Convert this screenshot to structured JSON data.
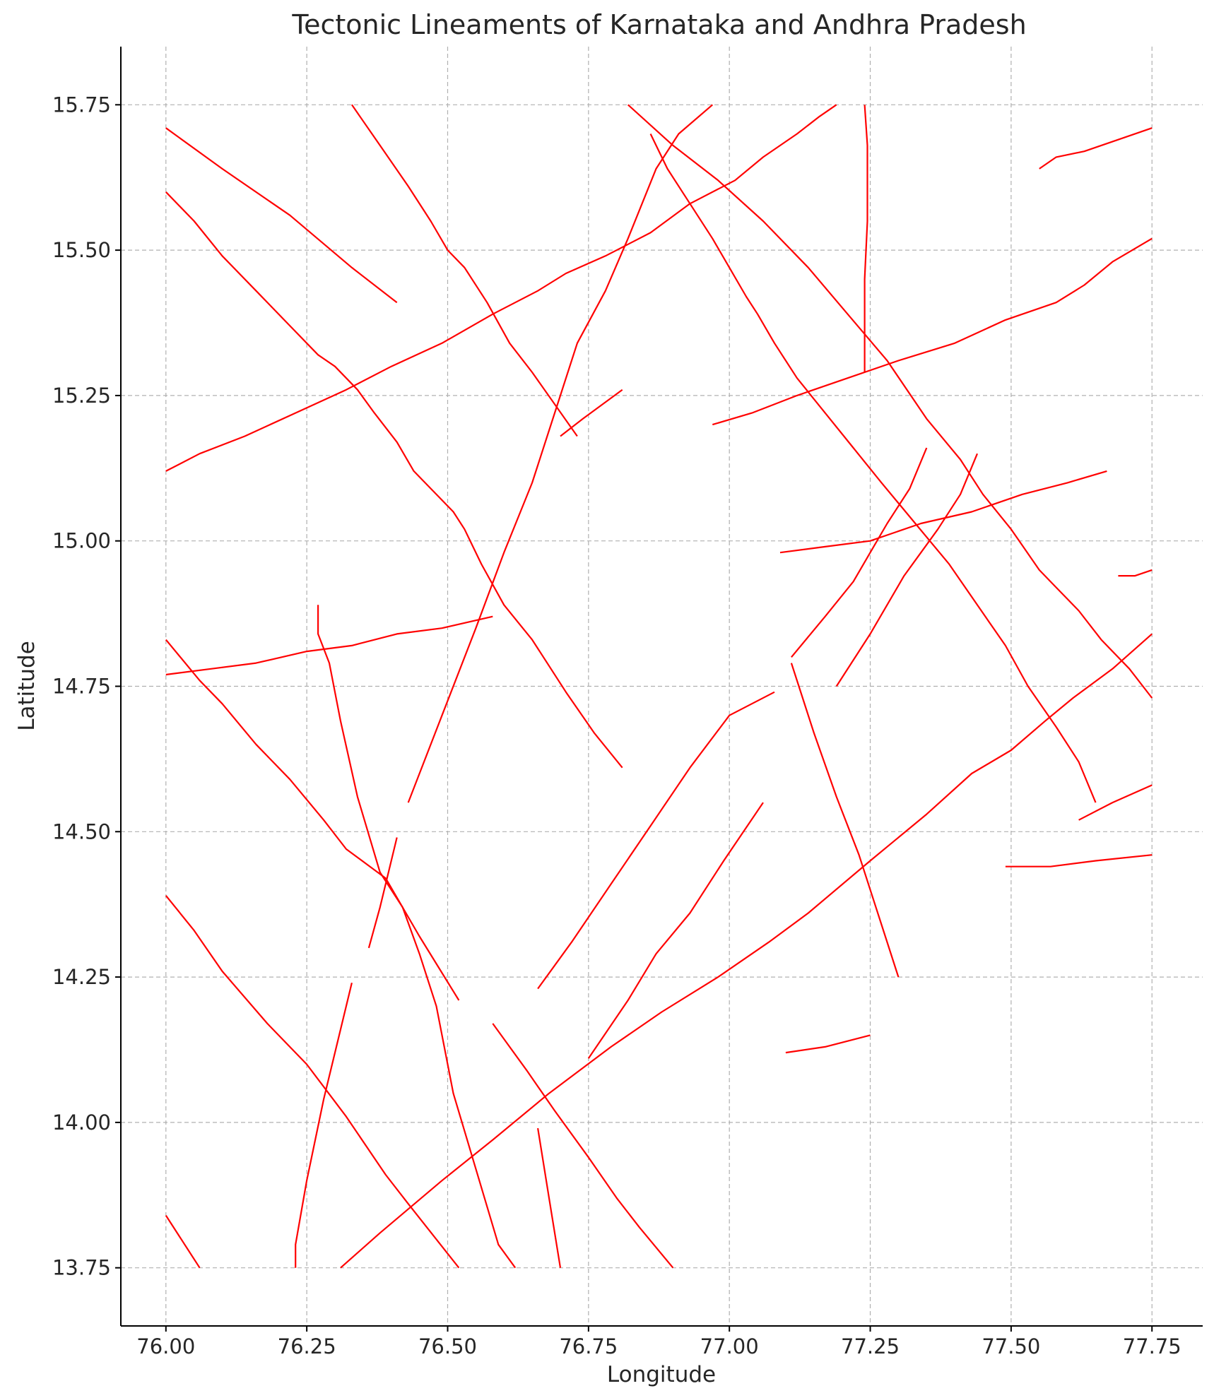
{
  "chart_data": {
    "type": "line",
    "title": "Tectonic Lineaments of Karnataka and Andhra Pradesh",
    "xlabel": "Longitude",
    "ylabel": "Latitude",
    "xlim": [
      75.92,
      77.84
    ],
    "ylim": [
      13.65,
      15.85
    ],
    "xticks": [
      "76.00",
      "76.25",
      "76.50",
      "76.75",
      "77.00",
      "77.25",
      "77.50",
      "77.75"
    ],
    "yticks": [
      "13.75",
      "14.00",
      "14.25",
      "14.50",
      "14.75",
      "15.00",
      "15.25",
      "15.50",
      "15.75"
    ],
    "grid": true,
    "line_color": "#ff0000",
    "series": [
      {
        "points": [
          [
            76.0,
            15.71
          ],
          [
            76.1,
            15.64
          ],
          [
            76.22,
            15.56
          ],
          [
            76.33,
            15.47
          ],
          [
            76.41,
            15.41
          ]
        ]
      },
      {
        "points": [
          [
            76.0,
            15.6
          ],
          [
            76.05,
            15.55
          ],
          [
            76.1,
            15.49
          ],
          [
            76.16,
            15.43
          ],
          [
            76.22,
            15.37
          ],
          [
            76.27,
            15.32
          ],
          [
            76.3,
            15.3
          ],
          [
            76.34,
            15.26
          ],
          [
            76.37,
            15.22
          ],
          [
            76.41,
            15.17
          ],
          [
            76.44,
            15.12
          ],
          [
            76.47,
            15.09
          ],
          [
            76.51,
            15.05
          ],
          [
            76.53,
            15.02
          ],
          [
            76.56,
            14.96
          ],
          [
            76.6,
            14.89
          ],
          [
            76.65,
            14.83
          ],
          [
            76.71,
            14.74
          ],
          [
            76.76,
            14.67
          ],
          [
            76.81,
            14.61
          ]
        ]
      },
      {
        "points": [
          [
            76.33,
            15.75
          ],
          [
            76.38,
            15.68
          ],
          [
            76.43,
            15.61
          ],
          [
            76.47,
            15.55
          ],
          [
            76.5,
            15.5
          ],
          [
            76.53,
            15.47
          ],
          [
            76.57,
            15.41
          ],
          [
            76.61,
            15.34
          ],
          [
            76.65,
            15.29
          ],
          [
            76.73,
            15.18
          ]
        ]
      },
      {
        "points": [
          [
            76.7,
            15.18
          ],
          [
            76.74,
            15.21
          ],
          [
            76.81,
            15.26
          ]
        ]
      },
      {
        "points": [
          [
            76.0,
            15.12
          ],
          [
            76.06,
            15.15
          ],
          [
            76.14,
            15.18
          ],
          [
            76.23,
            15.22
          ],
          [
            76.32,
            15.26
          ],
          [
            76.4,
            15.3
          ],
          [
            76.49,
            15.34
          ],
          [
            76.58,
            15.39
          ],
          [
            76.66,
            15.43
          ],
          [
            76.71,
            15.46
          ],
          [
            76.78,
            15.49
          ],
          [
            76.86,
            15.53
          ],
          [
            76.93,
            15.58
          ],
          [
            77.01,
            15.62
          ],
          [
            77.06,
            15.66
          ],
          [
            77.12,
            15.7
          ],
          [
            77.16,
            15.73
          ],
          [
            77.19,
            15.75
          ]
        ]
      },
      {
        "points": [
          [
            76.43,
            14.55
          ],
          [
            76.49,
            14.7
          ],
          [
            76.55,
            14.85
          ],
          [
            76.6,
            14.98
          ],
          [
            76.65,
            15.1
          ],
          [
            76.69,
            15.22
          ],
          [
            76.73,
            15.34
          ],
          [
            76.78,
            15.43
          ],
          [
            76.82,
            15.52
          ],
          [
            76.87,
            15.64
          ],
          [
            76.91,
            15.7
          ],
          [
            76.97,
            15.75
          ]
        ]
      },
      {
        "points": [
          [
            76.82,
            15.75
          ],
          [
            76.9,
            15.68
          ],
          [
            76.98,
            15.62
          ],
          [
            77.06,
            15.55
          ],
          [
            77.14,
            15.47
          ],
          [
            77.21,
            15.39
          ],
          [
            77.28,
            15.31
          ],
          [
            77.35,
            15.21
          ],
          [
            77.41,
            15.14
          ],
          [
            77.45,
            15.08
          ],
          [
            77.5,
            15.02
          ],
          [
            77.55,
            14.95
          ],
          [
            77.58,
            14.92
          ],
          [
            77.62,
            14.88
          ],
          [
            77.66,
            14.83
          ],
          [
            77.71,
            14.78
          ],
          [
            77.75,
            14.73
          ]
        ]
      },
      {
        "points": [
          [
            76.86,
            15.7
          ],
          [
            76.89,
            15.64
          ],
          [
            76.93,
            15.58
          ],
          [
            76.97,
            15.52
          ],
          [
            77.0,
            15.47
          ],
          [
            77.03,
            15.42
          ],
          [
            77.05,
            15.39
          ],
          [
            77.08,
            15.34
          ],
          [
            77.12,
            15.28
          ],
          [
            77.17,
            15.22
          ],
          [
            77.22,
            15.16
          ],
          [
            77.27,
            15.1
          ],
          [
            77.33,
            15.03
          ],
          [
            77.39,
            14.96
          ],
          [
            77.44,
            14.89
          ],
          [
            77.49,
            14.82
          ],
          [
            77.53,
            14.75
          ],
          [
            77.58,
            14.68
          ],
          [
            77.62,
            14.62
          ],
          [
            77.65,
            14.55
          ]
        ]
      },
      {
        "points": [
          [
            77.24,
            15.75
          ],
          [
            77.245,
            15.68
          ],
          [
            77.245,
            15.55
          ],
          [
            77.24,
            15.45
          ],
          [
            77.24,
            15.37
          ],
          [
            77.24,
            15.29
          ]
        ]
      },
      {
        "points": [
          [
            76.97,
            15.2
          ],
          [
            77.04,
            15.22
          ],
          [
            77.12,
            15.25
          ],
          [
            77.21,
            15.28
          ],
          [
            77.3,
            15.31
          ],
          [
            77.4,
            15.34
          ],
          [
            77.49,
            15.38
          ],
          [
            77.58,
            15.41
          ],
          [
            77.63,
            15.44
          ],
          [
            77.68,
            15.48
          ],
          [
            77.75,
            15.52
          ]
        ]
      },
      {
        "points": [
          [
            77.55,
            15.64
          ],
          [
            77.58,
            15.66
          ],
          [
            77.63,
            15.67
          ],
          [
            77.69,
            15.69
          ],
          [
            77.75,
            15.71
          ]
        ]
      },
      {
        "points": [
          [
            77.09,
            14.98
          ],
          [
            77.17,
            14.99
          ],
          [
            77.25,
            15.0
          ],
          [
            77.34,
            15.03
          ],
          [
            77.43,
            15.05
          ],
          [
            77.52,
            15.08
          ],
          [
            77.6,
            15.1
          ],
          [
            77.67,
            15.12
          ]
        ]
      },
      {
        "points": [
          [
            77.11,
            14.8
          ],
          [
            77.17,
            14.87
          ],
          [
            77.22,
            14.93
          ],
          [
            77.25,
            14.98
          ],
          [
            77.28,
            15.03
          ],
          [
            77.32,
            15.09
          ],
          [
            77.35,
            15.16
          ]
        ]
      },
      {
        "points": [
          [
            77.19,
            14.75
          ],
          [
            77.25,
            14.84
          ],
          [
            77.31,
            14.94
          ],
          [
            77.34,
            14.98
          ],
          [
            77.37,
            15.02
          ],
          [
            77.41,
            15.08
          ],
          [
            77.44,
            15.15
          ]
        ]
      },
      {
        "points": [
          [
            77.69,
            14.94
          ],
          [
            77.72,
            14.94
          ],
          [
            77.75,
            14.95
          ]
        ]
      },
      {
        "points": [
          [
            77.11,
            14.79
          ],
          [
            77.15,
            14.67
          ],
          [
            77.19,
            14.56
          ],
          [
            77.23,
            14.46
          ],
          [
            77.27,
            14.34
          ],
          [
            77.3,
            14.25
          ]
        ]
      },
      {
        "points": [
          [
            76.0,
            14.77
          ],
          [
            76.08,
            14.78
          ],
          [
            76.16,
            14.79
          ],
          [
            76.25,
            14.81
          ],
          [
            76.33,
            14.82
          ],
          [
            76.41,
            14.84
          ],
          [
            76.49,
            14.85
          ],
          [
            76.58,
            14.87
          ]
        ]
      },
      {
        "points": [
          [
            76.0,
            14.83
          ],
          [
            76.06,
            14.76
          ],
          [
            76.1,
            14.72
          ],
          [
            76.16,
            14.65
          ],
          [
            76.22,
            14.59
          ],
          [
            76.28,
            14.52
          ],
          [
            76.32,
            14.47
          ],
          [
            76.39,
            14.42
          ],
          [
            76.45,
            14.32
          ],
          [
            76.52,
            14.21
          ]
        ]
      },
      {
        "points": [
          [
            76.27,
            14.89
          ],
          [
            76.27,
            14.84
          ],
          [
            76.29,
            14.79
          ],
          [
            76.31,
            14.69
          ],
          [
            76.34,
            14.56
          ],
          [
            76.38,
            14.43
          ],
          [
            76.42,
            14.37
          ],
          [
            76.45,
            14.29
          ],
          [
            76.48,
            14.2
          ],
          [
            76.51,
            14.05
          ],
          [
            76.55,
            13.92
          ],
          [
            76.59,
            13.79
          ],
          [
            76.62,
            13.75
          ]
        ]
      },
      {
        "points": [
          [
            76.36,
            14.3
          ],
          [
            76.38,
            14.37
          ],
          [
            76.41,
            14.49
          ]
        ]
      },
      {
        "points": [
          [
            76.0,
            14.39
          ],
          [
            76.05,
            14.33
          ],
          [
            76.1,
            14.26
          ],
          [
            76.18,
            14.17
          ],
          [
            76.21,
            14.14
          ],
          [
            76.25,
            14.1
          ],
          [
            76.32,
            14.01
          ],
          [
            76.39,
            13.91
          ],
          [
            76.43,
            13.86
          ],
          [
            76.52,
            13.75
          ]
        ]
      },
      {
        "points": [
          [
            76.23,
            13.75
          ],
          [
            76.23,
            13.79
          ],
          [
            76.25,
            13.9
          ],
          [
            76.28,
            14.04
          ],
          [
            76.33,
            14.24
          ]
        ]
      },
      {
        "points": [
          [
            76.0,
            13.84
          ],
          [
            76.06,
            13.75
          ]
        ]
      },
      {
        "points": [
          [
            76.31,
            13.75
          ],
          [
            76.38,
            13.81
          ],
          [
            76.49,
            13.9
          ],
          [
            76.58,
            13.97
          ],
          [
            76.68,
            14.05
          ],
          [
            76.79,
            14.13
          ],
          [
            76.88,
            14.19
          ],
          [
            76.98,
            14.25
          ],
          [
            77.07,
            14.31
          ],
          [
            77.14,
            14.36
          ],
          [
            77.25,
            14.45
          ],
          [
            77.35,
            14.53
          ],
          [
            77.43,
            14.6
          ],
          [
            77.5,
            14.64
          ],
          [
            77.56,
            14.69
          ],
          [
            77.61,
            14.73
          ],
          [
            77.68,
            14.78
          ],
          [
            77.75,
            14.84
          ]
        ]
      },
      {
        "points": [
          [
            76.58,
            14.17
          ],
          [
            76.61,
            14.13
          ],
          [
            76.64,
            14.09
          ],
          [
            76.69,
            14.02
          ],
          [
            76.75,
            13.94
          ],
          [
            76.8,
            13.87
          ],
          [
            76.84,
            13.82
          ],
          [
            76.9,
            13.75
          ]
        ]
      },
      {
        "points": [
          [
            76.66,
            13.99
          ],
          [
            76.68,
            13.87
          ],
          [
            76.7,
            13.75
          ]
        ]
      },
      {
        "points": [
          [
            76.66,
            14.23
          ],
          [
            76.72,
            14.31
          ],
          [
            76.79,
            14.41
          ],
          [
            76.86,
            14.51
          ],
          [
            76.93,
            14.61
          ],
          [
            77.0,
            14.7
          ],
          [
            77.08,
            14.74
          ]
        ]
      },
      {
        "points": [
          [
            76.75,
            14.11
          ],
          [
            76.82,
            14.21
          ],
          [
            76.87,
            14.29
          ],
          [
            76.93,
            14.36
          ],
          [
            76.99,
            14.45
          ],
          [
            77.06,
            14.55
          ]
        ]
      },
      {
        "points": [
          [
            77.49,
            14.44
          ],
          [
            77.57,
            14.44
          ],
          [
            77.65,
            14.45
          ],
          [
            77.75,
            14.46
          ]
        ]
      },
      {
        "points": [
          [
            77.62,
            14.52
          ],
          [
            77.68,
            14.55
          ],
          [
            77.75,
            14.58
          ]
        ]
      },
      {
        "points": [
          [
            77.1,
            14.12
          ],
          [
            77.17,
            14.13
          ],
          [
            77.25,
            14.15
          ]
        ]
      }
    ]
  }
}
